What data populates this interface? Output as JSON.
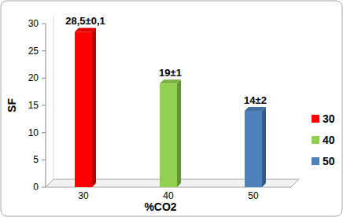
{
  "chart_data": {
    "type": "bar",
    "x_label": "%CO2",
    "y_label": "SF",
    "categories": [
      "30",
      "40",
      "50"
    ],
    "values": [
      28.5,
      19,
      14
    ],
    "value_labels": [
      "28,5±0,1",
      "19±1",
      "14±2"
    ],
    "colors": [
      "#ff0000",
      "#92d050",
      "#4f81bd"
    ],
    "ylim": [
      0,
      30
    ],
    "yticks": [
      0,
      5,
      10,
      15,
      20,
      25,
      30
    ],
    "grid": false,
    "legend": "right",
    "data_labels": true
  }
}
